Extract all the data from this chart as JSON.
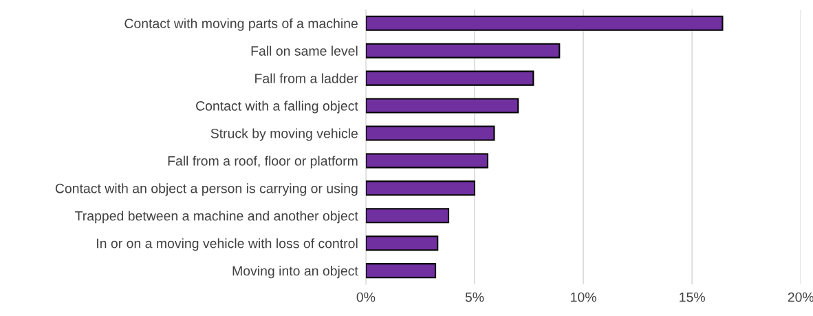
{
  "chart_data": {
    "type": "bar",
    "orientation": "horizontal",
    "categories": [
      "Contact with moving parts of a machine",
      "Fall on same level",
      "Fall from a ladder",
      "Contact with a falling object",
      "Struck by moving vehicle",
      "Fall from a roof, floor or platform",
      "Contact with an object a person is carrying or using",
      "Trapped between a machine and another object",
      "In or on a moving vehicle with loss of control",
      "Moving into an object"
    ],
    "values": [
      16.4,
      8.9,
      7.7,
      7.0,
      5.9,
      5.6,
      5.0,
      3.8,
      3.3,
      3.2
    ],
    "color": "#7030a0",
    "xlim": [
      0,
      20
    ],
    "xticks": [
      {
        "value": 0,
        "label": "0%"
      },
      {
        "value": 5,
        "label": "5%"
      },
      {
        "value": 10,
        "label": "10%"
      },
      {
        "value": 15,
        "label": "15%"
      },
      {
        "value": 20,
        "label": "20%"
      }
    ],
    "grid": "x",
    "legend": false
  }
}
